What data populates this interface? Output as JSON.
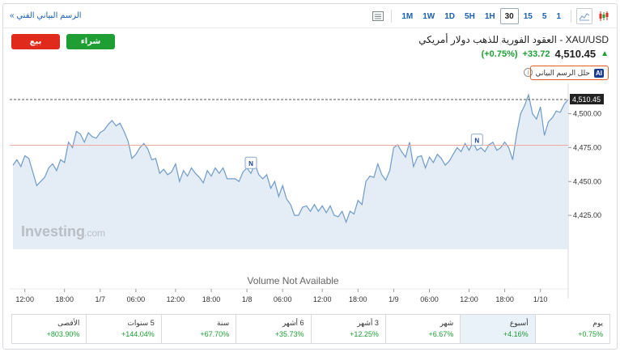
{
  "toolbar": {
    "tech_chart_link": "الرسم البياني الفني",
    "intervals": [
      "1M",
      "1W",
      "1D",
      "5H",
      "1H",
      "30",
      "15",
      "5",
      "1"
    ],
    "active_interval": "30"
  },
  "trade": {
    "sell_label": "بيع",
    "buy_label": "شراء"
  },
  "instrument": {
    "title": "XAU/USD - العقود الفورية للذهب دولار أمريكي",
    "price": "4,510.45",
    "change": "+33.72",
    "change_pct": "(+0.75%)",
    "ai_badge": "AI",
    "ai_label": "حلل الرسم البياني",
    "info_glyph": "i"
  },
  "colors": {
    "positive": "#1e9e33",
    "negative": "#e02a1c",
    "accent": "#1a5fb4",
    "area_fill": "#e4edf6",
    "area_line": "#6f9bc9"
  },
  "chart_data": {
    "type": "area",
    "ylim": [
      4400,
      4520
    ],
    "y_ticks": [
      "4,425.00",
      "4,450.00",
      "4,475.00",
      "4,500.00"
    ],
    "y_tick_values": [
      4425,
      4450,
      4475,
      4500
    ],
    "x_ticks": [
      "12:00",
      "18:00",
      "1/7",
      "06:00",
      "12:00",
      "18:00",
      "1/8",
      "06:00",
      "12:00",
      "18:00",
      "1/9",
      "06:00",
      "12:00",
      "18:00",
      "1/10"
    ],
    "x_tick_index": [
      3,
      13,
      22,
      31,
      41,
      50,
      59,
      68,
      78,
      87,
      96,
      105,
      115,
      124,
      133
    ],
    "last_price_label": "4,510.45",
    "last_price": 4510.45,
    "prev_close": 4476.73,
    "values": [
      4462,
      4466,
      4461,
      4469,
      4467,
      4457,
      4447,
      4450,
      4453,
      4460,
      4463,
      4458,
      4466,
      4464,
      4479,
      4475,
      4487,
      4485,
      4479,
      4486,
      4483,
      4482,
      4486,
      4488,
      4492,
      4495,
      4491,
      4493,
      4487,
      4480,
      4467,
      4470,
      4475,
      4478,
      4474,
      4466,
      4467,
      4456,
      4459,
      4455,
      4457,
      4463,
      4450,
      4458,
      4454,
      4460,
      4456,
      4453,
      4449,
      4458,
      4454,
      4460,
      4456,
      4460,
      4452,
      4452,
      4452,
      4450,
      4457,
      4460,
      4456,
      4463,
      4455,
      4452,
      4455,
      4445,
      4450,
      4439,
      4447,
      4437,
      4433,
      4425,
      4425,
      4431,
      4432,
      4428,
      4433,
      4428,
      4432,
      4427,
      4432,
      4425,
      4424,
      4428,
      4420,
      4428,
      4426,
      4436,
      4433,
      4450,
      4454,
      4453,
      4463,
      4455,
      4451,
      4458,
      4475,
      4477,
      4472,
      4468,
      4479,
      4461,
      4468,
      4469,
      4460,
      4468,
      4464,
      4470,
      4467,
      4462,
      4465,
      4470,
      4475,
      4472,
      4478,
      4473,
      4479,
      4473,
      4475,
      4472,
      4477,
      4479,
      4473,
      4475,
      4479,
      4475,
      4466,
      4485,
      4500,
      4506,
      4514,
      4500,
      4496,
      4505,
      4484,
      4494,
      4497,
      4502,
      4501,
      4507,
      4510.45
    ],
    "news_markers": [
      {
        "label": "N",
        "index": 60
      },
      {
        "label": "N",
        "index": 117
      }
    ],
    "watermark_brand": "Investing",
    "watermark_suffix": ".com",
    "volume_note": "Volume Not Available"
  },
  "performance": [
    {
      "label": "يوم",
      "value": "+0.75%"
    },
    {
      "label": "أسبوع",
      "value": "+4.16%"
    },
    {
      "label": "شهر",
      "value": "+6.67%"
    },
    {
      "label": "3 أشهر",
      "value": "+12.25%"
    },
    {
      "label": "6 أشهر",
      "value": "+35.73%"
    },
    {
      "label": "سنة",
      "value": "+67.70%"
    },
    {
      "label": "5 سنوات",
      "value": "+144.04%"
    },
    {
      "label": "الأقصى",
      "value": "+803.90%"
    }
  ]
}
